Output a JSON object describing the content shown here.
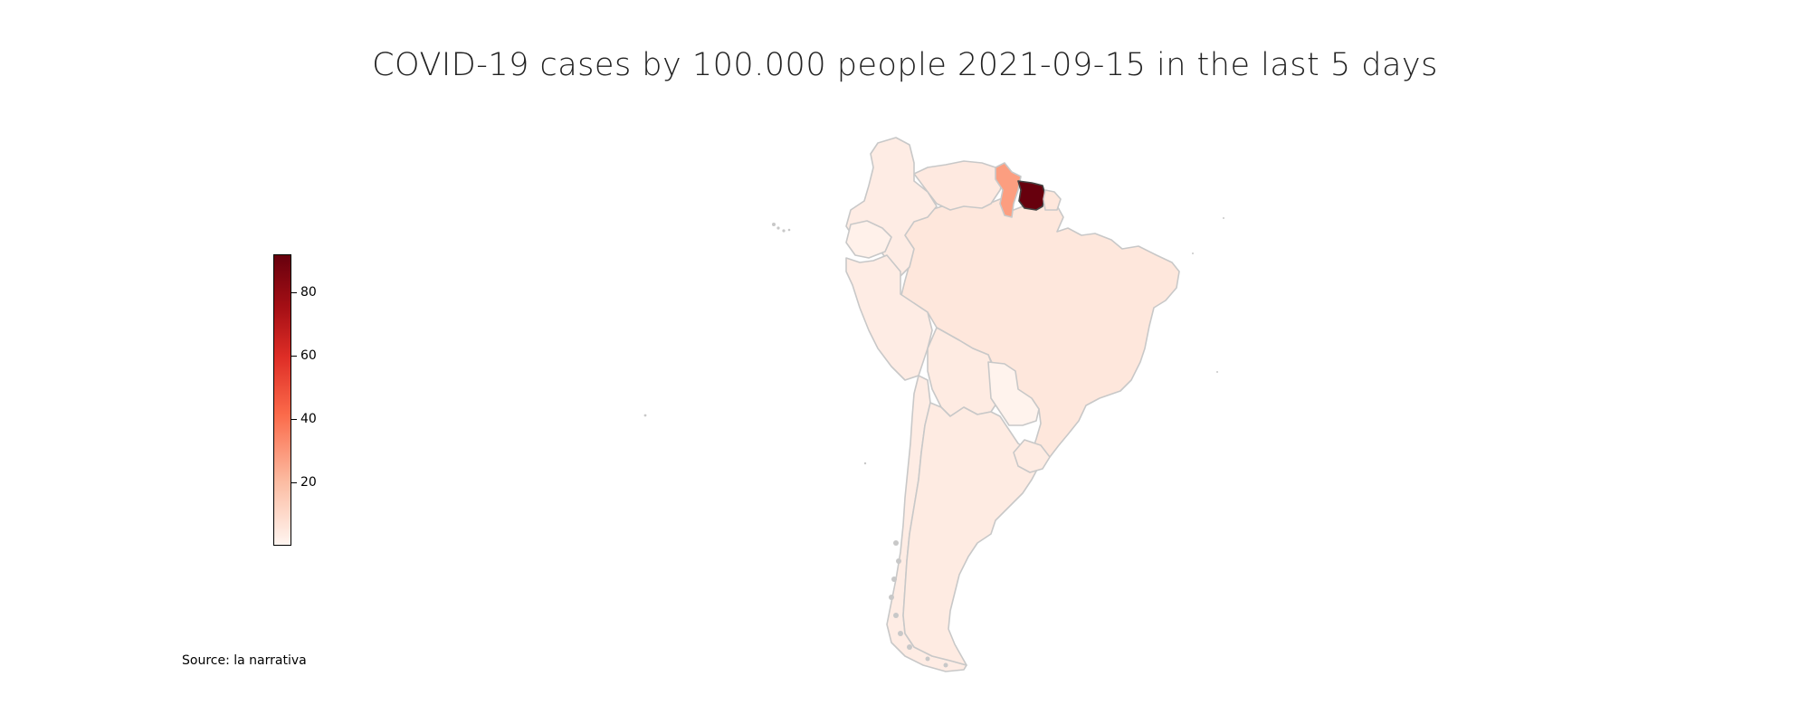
{
  "title": "COVID-19 cases by 100.000 people 2021-09-15 in the last 5 days",
  "source": "Source: la narrativa",
  "colorbar": {
    "min": 0,
    "max": 92,
    "ticks": [
      {
        "value": 20,
        "label": "20"
      },
      {
        "value": 40,
        "label": "40"
      },
      {
        "value": 60,
        "label": "60"
      },
      {
        "value": 80,
        "label": "80"
      }
    ],
    "colormap": "Reds"
  },
  "colors": {
    "border": "#c8c8c8",
    "lowest": "#fff5f0",
    "low": "#feeae0",
    "mid": "#fc9e80",
    "high": "#fc8d6a",
    "highest": "#67000d"
  }
}
